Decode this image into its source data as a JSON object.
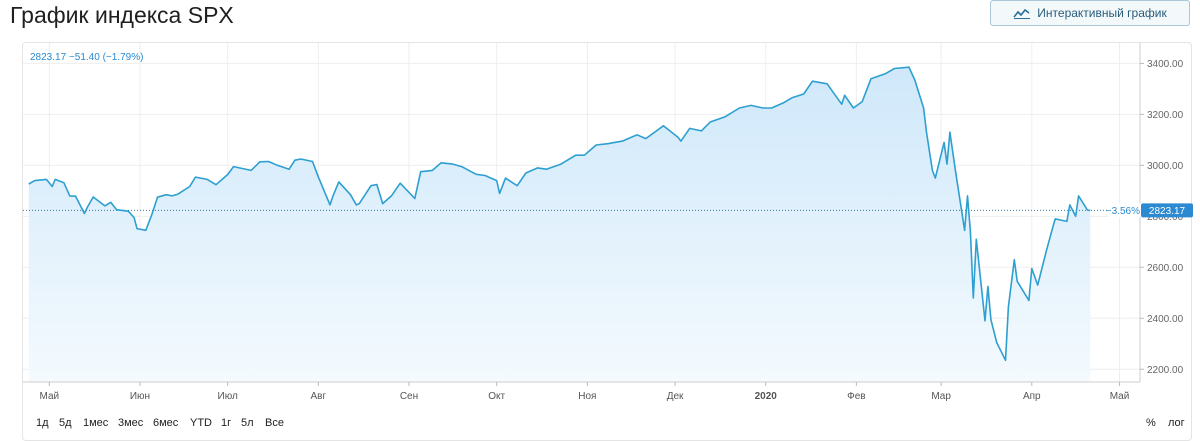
{
  "page": {
    "title": "График индекса SPX",
    "interactive_button": "Интерактивный график"
  },
  "legend": {
    "text": "2823.17 −51.40 (−1.79%)"
  },
  "last_price": {
    "change": "−3.56%",
    "value": "2823.17"
  },
  "range_buttons": [
    "1д",
    "5д",
    "1мес",
    "3мес",
    "6мес",
    "YTD",
    "1г",
    "5л",
    "Все"
  ],
  "scale_buttons": [
    "%",
    "лог"
  ],
  "colors": {
    "line": "#2d9fd0",
    "area_top": "#cfe8fa",
    "area_bottom": "#f4fafe",
    "badge": "#2b8ad1",
    "grid": "#eeeeee"
  },
  "chart_data": {
    "type": "area",
    "title": "График индекса SPX",
    "xlabel": "",
    "ylabel": "",
    "ylim": [
      2150,
      3480
    ],
    "yticks": [
      2200,
      2400,
      2600,
      2800,
      3000,
      3200,
      3400
    ],
    "x_tick_labels": [
      "Май",
      "Июн",
      "Июл",
      "Авг",
      "Сен",
      "Окт",
      "Ноя",
      "Дек",
      "2020",
      "Фев",
      "Мар",
      "Апр",
      "Май"
    ],
    "reference_value": 2823.17,
    "x": [
      "2019-04-24",
      "2019-04-26",
      "2019-04-30",
      "2019-05-02",
      "2019-05-03",
      "2019-05-06",
      "2019-05-08",
      "2019-05-10",
      "2019-05-13",
      "2019-05-14",
      "2019-05-16",
      "2019-05-20",
      "2019-05-22",
      "2019-05-24",
      "2019-05-28",
      "2019-05-30",
      "2019-05-31",
      "2019-06-03",
      "2019-06-05",
      "2019-06-07",
      "2019-06-10",
      "2019-06-12",
      "2019-06-14",
      "2019-06-18",
      "2019-06-20",
      "2019-06-24",
      "2019-06-27",
      "2019-07-01",
      "2019-07-03",
      "2019-07-05",
      "2019-07-09",
      "2019-07-12",
      "2019-07-15",
      "2019-07-18",
      "2019-07-22",
      "2019-07-24",
      "2019-07-26",
      "2019-07-30",
      "2019-08-01",
      "2019-08-05",
      "2019-08-06",
      "2019-08-08",
      "2019-08-12",
      "2019-08-14",
      "2019-08-15",
      "2019-08-19",
      "2019-08-21",
      "2019-08-23",
      "2019-08-26",
      "2019-08-29",
      "2019-09-03",
      "2019-09-05",
      "2019-09-09",
      "2019-09-12",
      "2019-09-16",
      "2019-09-19",
      "2019-09-24",
      "2019-09-27",
      "2019-10-01",
      "2019-10-02",
      "2019-10-04",
      "2019-10-08",
      "2019-10-11",
      "2019-10-15",
      "2019-10-18",
      "2019-10-23",
      "2019-10-28",
      "2019-10-31",
      "2019-11-04",
      "2019-11-08",
      "2019-11-13",
      "2019-11-18",
      "2019-11-21",
      "2019-11-27",
      "2019-12-02",
      "2019-12-03",
      "2019-12-06",
      "2019-12-10",
      "2019-12-13",
      "2019-12-18",
      "2019-12-23",
      "2019-12-27",
      "2019-12-31",
      "2020-01-03",
      "2020-01-07",
      "2020-01-10",
      "2020-01-14",
      "2020-01-17",
      "2020-01-22",
      "2020-01-27",
      "2020-01-28",
      "2020-01-31",
      "2020-02-03",
      "2020-02-06",
      "2020-02-11",
      "2020-02-14",
      "2020-02-19",
      "2020-02-21",
      "2020-02-24",
      "2020-02-25",
      "2020-02-27",
      "2020-02-28",
      "2020-03-02",
      "2020-03-03",
      "2020-03-04",
      "2020-03-06",
      "2020-03-09",
      "2020-03-10",
      "2020-03-11",
      "2020-03-12",
      "2020-03-13",
      "2020-03-16",
      "2020-03-17",
      "2020-03-18",
      "2020-03-20",
      "2020-03-23",
      "2020-03-24",
      "2020-03-26",
      "2020-03-27",
      "2020-03-31",
      "2020-04-01",
      "2020-04-03",
      "2020-04-06",
      "2020-04-08",
      "2020-04-09",
      "2020-04-13",
      "2020-04-14",
      "2020-04-16",
      "2020-04-17",
      "2020-04-20",
      "2020-04-21"
    ],
    "series": [
      {
        "values": [
          2927,
          2940,
          2945,
          2917,
          2945,
          2932,
          2880,
          2879,
          2811,
          2835,
          2876,
          2841,
          2855,
          2826,
          2820,
          2795,
          2752,
          2745,
          2805,
          2875,
          2885,
          2880,
          2887,
          2917,
          2954,
          2945,
          2924,
          2964,
          2995,
          2990,
          2980,
          3014,
          3015,
          3000,
          2985,
          3020,
          3025,
          3015,
          2955,
          2845,
          2880,
          2935,
          2885,
          2845,
          2850,
          2920,
          2925,
          2850,
          2880,
          2930,
          2870,
          2975,
          2980,
          3010,
          3005,
          2995,
          2965,
          2960,
          2940,
          2890,
          2950,
          2920,
          2970,
          2990,
          2985,
          3005,
          3040,
          3040,
          3080,
          3085,
          3095,
          3120,
          3105,
          3155,
          3110,
          3095,
          3145,
          3135,
          3170,
          3190,
          3225,
          3235,
          3225,
          3225,
          3245,
          3265,
          3280,
          3330,
          3320,
          3240,
          3275,
          3225,
          3250,
          3340,
          3360,
          3380,
          3385,
          3335,
          3225,
          3130,
          2980,
          2950,
          3090,
          3005,
          3130,
          2970,
          2745,
          2880,
          2740,
          2480,
          2710,
          2390,
          2525,
          2395,
          2305,
          2235,
          2445,
          2630,
          2545,
          2470,
          2595,
          2530,
          2665,
          2750,
          2790,
          2780,
          2845,
          2800,
          2880,
          2825,
          2823
        ]
      }
    ]
  }
}
